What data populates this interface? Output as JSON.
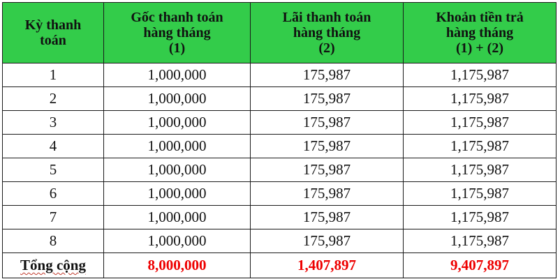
{
  "table": {
    "headers": [
      {
        "lines": [
          "Kỳ thanh",
          "toán"
        ]
      },
      {
        "lines": [
          "Gốc thanh toán",
          "hàng tháng",
          "(1)"
        ]
      },
      {
        "lines": [
          "Lãi thanh toán",
          "hàng tháng",
          "(2)"
        ]
      },
      {
        "lines": [
          "Khoản tiền trả",
          "hàng tháng",
          "(1) + (2)"
        ]
      }
    ],
    "rows": [
      [
        "1",
        "1,000,000",
        "175,987",
        "1,175,987"
      ],
      [
        "2",
        "1,000,000",
        "175,987",
        "1,175,987"
      ],
      [
        "3",
        "1,000,000",
        "175,987",
        "1,175,987"
      ],
      [
        "4",
        "1,000,000",
        "175,987",
        "1,175,987"
      ],
      [
        "5",
        "1,000,000",
        "175,987",
        "1,175,987"
      ],
      [
        "6",
        "1,000,000",
        "175,987",
        "1,175,987"
      ],
      [
        "7",
        "1,000,000",
        "175,987",
        "1,175,987"
      ],
      [
        "8",
        "1,000,000",
        "175,987",
        "1,175,987"
      ]
    ],
    "total": {
      "label": "Tổng cộng",
      "principal": "8,000,000",
      "interest": "1,407,897",
      "payment": "9,407,897"
    }
  },
  "colors": {
    "header_bg": "#33cc4a",
    "total_value": "#ee0000"
  }
}
